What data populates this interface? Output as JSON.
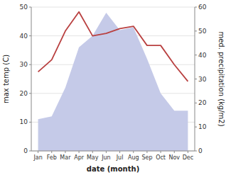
{
  "chart_data": {
    "type": "line",
    "xlabel": "date (month)",
    "ylabel": "max temp (C)",
    "y2label": "med. precipitation (kg/m2)",
    "categories": [
      "Jan",
      "Feb",
      "Mar",
      "Apr",
      "May",
      "Jun",
      "Jul",
      "Aug",
      "Sep",
      "Oct",
      "Nov",
      "Dec"
    ],
    "series": [
      {
        "type": "area",
        "color": "#c5cae8",
        "values": [
          11,
          12,
          22,
          36,
          40,
          48,
          42,
          43,
          32,
          20,
          14,
          14
        ]
      },
      {
        "type": "line",
        "axis": "y2",
        "color": "#b94040",
        "values": [
          33,
          38,
          50,
          58,
          48,
          49,
          51,
          52,
          44,
          44,
          36,
          29
        ]
      }
    ],
    "ylim": [
      0,
      50
    ],
    "yticks": [
      0,
      10,
      20,
      30,
      40,
      50
    ],
    "y2lim": [
      0,
      60
    ],
    "y2ticks": [
      0,
      10,
      20,
      30,
      40,
      50,
      60
    ],
    "grid": true
  }
}
